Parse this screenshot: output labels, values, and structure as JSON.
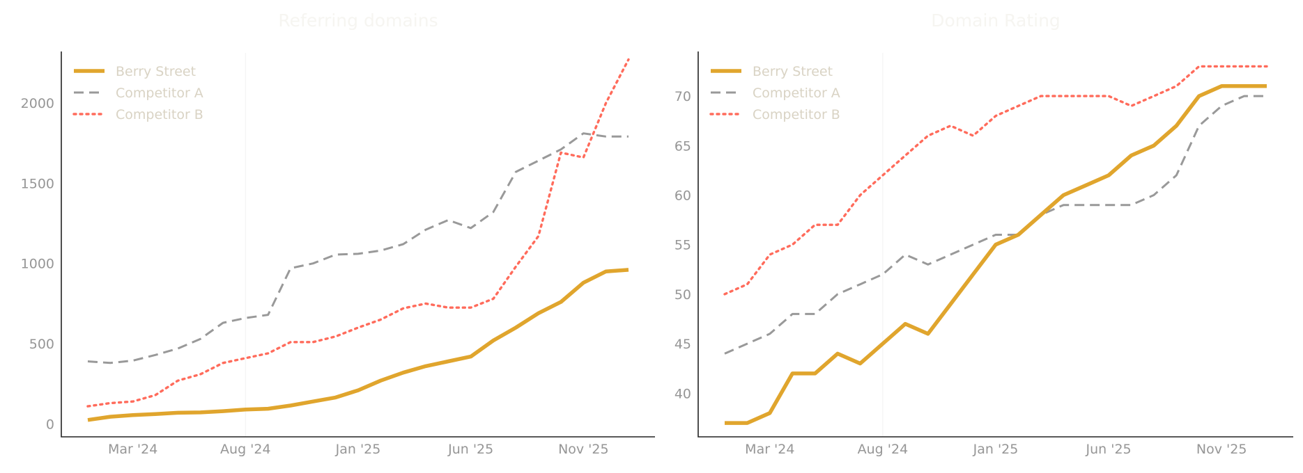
{
  "colors": {
    "berry": "#e0a52d",
    "competitor_a": "#999999",
    "competitor_b": "#ff6b5b"
  },
  "chart_data": [
    {
      "type": "line",
      "title": "Referring domains",
      "xlabel": "",
      "ylabel": "",
      "x": [
        "Jan '24",
        "Feb '24",
        "Mar '24",
        "Apr '24",
        "May '24",
        "Jun '24",
        "Jul '24",
        "Aug '24",
        "Sep '24",
        "Oct '24",
        "Nov '24",
        "Dec '24",
        "Jan '25",
        "Feb '25",
        "Mar '25",
        "Apr '25",
        "May '25",
        "Jun '25",
        "Jul '25",
        "Aug '25",
        "Sep '25",
        "Oct '25",
        "Nov '25",
        "Dec '25",
        "Jan '26"
      ],
      "x_tick_labels": [
        "Mar '24",
        "Aug '24",
        "Jan '25",
        "Jun '25",
        "Nov '25"
      ],
      "y_ticks": [
        0,
        500,
        1000,
        1500,
        2000
      ],
      "ylim": [
        -80,
        2320
      ],
      "vline_at": "Aug '24",
      "legend": "top-left",
      "series": [
        {
          "name": "Berry Street",
          "style": "solid",
          "color": "#e0a52d",
          "values": [
            25,
            45,
            55,
            62,
            70,
            72,
            80,
            90,
            95,
            115,
            140,
            165,
            210,
            270,
            320,
            360,
            390,
            420,
            520,
            600,
            690,
            760,
            880,
            950,
            960
          ]
        },
        {
          "name": "Competitor A",
          "style": "dashed",
          "color": "#999999",
          "values": [
            390,
            380,
            395,
            430,
            470,
            530,
            630,
            660,
            680,
            970,
            1000,
            1055,
            1060,
            1080,
            1120,
            1210,
            1270,
            1220,
            1320,
            1570,
            1640,
            1710,
            1810,
            1790,
            1790
          ]
        },
        {
          "name": "Competitor B",
          "style": "dotted",
          "color": "#ff6b5b",
          "values": [
            110,
            130,
            140,
            180,
            270,
            310,
            380,
            410,
            440,
            510,
            510,
            545,
            600,
            650,
            720,
            750,
            725,
            725,
            780,
            980,
            1170,
            1690,
            1660,
            2000,
            2270
          ]
        }
      ]
    },
    {
      "type": "line",
      "title": "Domain Rating",
      "xlabel": "",
      "ylabel": "",
      "x": [
        "Jan '24",
        "Feb '24",
        "Mar '24",
        "Apr '24",
        "May '24",
        "Jun '24",
        "Jul '24",
        "Aug '24",
        "Sep '24",
        "Oct '24",
        "Nov '24",
        "Dec '24",
        "Jan '25",
        "Feb '25",
        "Mar '25",
        "Apr '25",
        "May '25",
        "Jun '25",
        "Jul '25",
        "Aug '25",
        "Sep '25",
        "Oct '25",
        "Nov '25",
        "Dec '25",
        "Jan '26"
      ],
      "x_tick_labels": [
        "Mar '24",
        "Aug '24",
        "Jan '25",
        "Jun '25",
        "Nov '25"
      ],
      "y_ticks": [
        40,
        45,
        50,
        55,
        60,
        65,
        70
      ],
      "ylim": [
        35.6,
        74.5
      ],
      "vline_at": "Aug '24",
      "legend": "top-left",
      "series": [
        {
          "name": "Berry Street",
          "style": "solid",
          "color": "#e0a52d",
          "values": [
            37,
            37,
            38,
            42,
            42,
            44,
            43,
            45,
            47,
            46,
            49,
            52,
            55,
            56,
            58,
            60,
            61,
            62,
            64,
            65,
            67,
            70,
            71,
            71,
            71
          ]
        },
        {
          "name": "Competitor A",
          "style": "dashed",
          "color": "#999999",
          "values": [
            44,
            45,
            46,
            48,
            48,
            50,
            51,
            52,
            54,
            53,
            54,
            55,
            56,
            56,
            58,
            59,
            59,
            59,
            59,
            60,
            62,
            67,
            69,
            70,
            70
          ]
        },
        {
          "name": "Competitor B",
          "style": "dotted",
          "color": "#ff6b5b",
          "values": [
            50,
            51,
            54,
            55,
            57,
            57,
            60,
            62,
            64,
            66,
            67,
            66,
            68,
            69,
            70,
            70,
            70,
            70,
            69,
            70,
            71,
            73,
            73,
            73,
            73
          ]
        }
      ]
    }
  ]
}
